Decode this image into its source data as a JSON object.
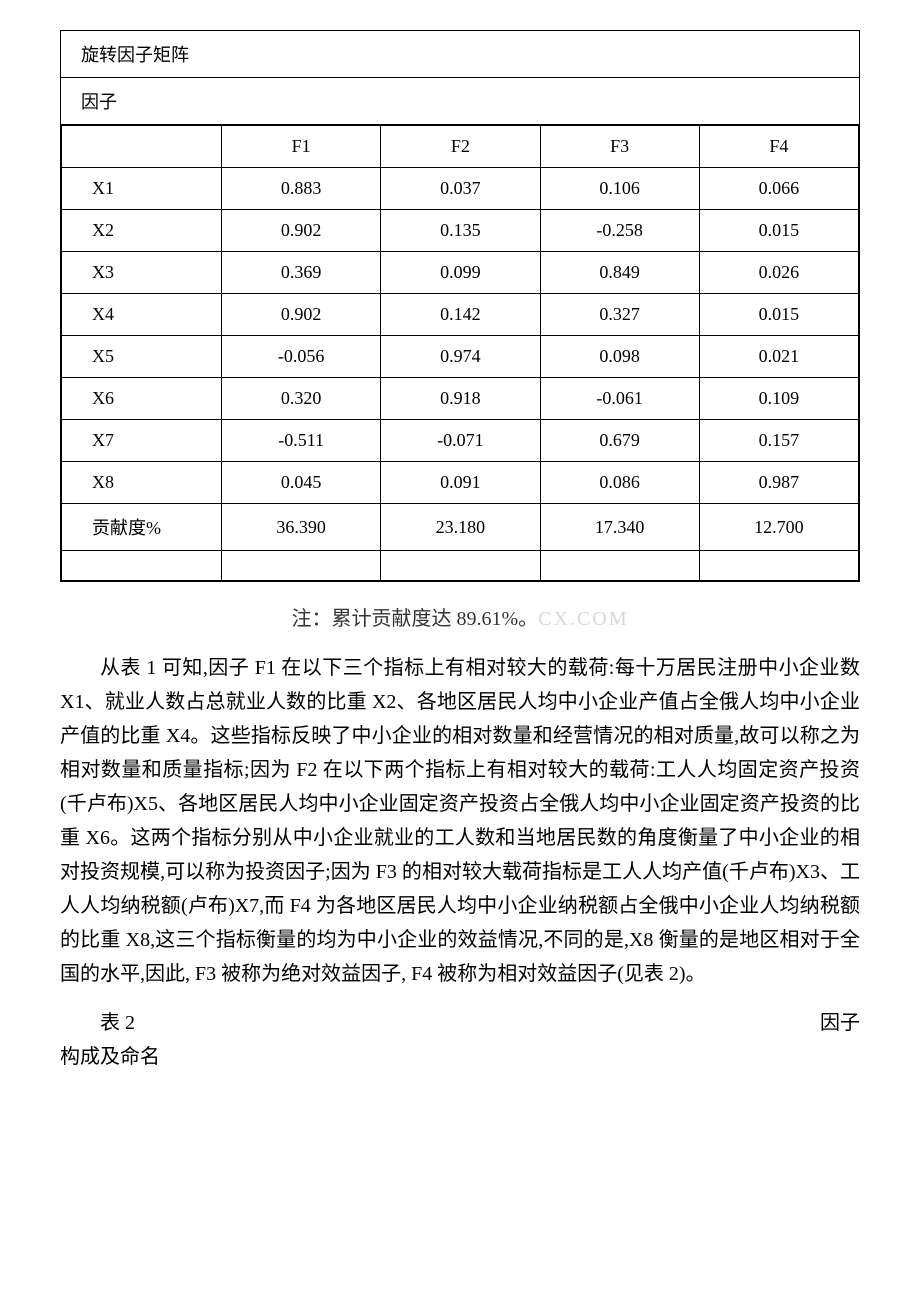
{
  "table1": {
    "title": "旋转因子矩阵",
    "subtitle": "因子",
    "columns": [
      "",
      "F1",
      "F2",
      "F3",
      "F4"
    ],
    "rows": [
      {
        "label": "X1",
        "values": [
          "0.883",
          "0.037",
          "0.106",
          "0.066"
        ]
      },
      {
        "label": "X2",
        "values": [
          "0.902",
          "0.135",
          "-0.258",
          "0.015"
        ]
      },
      {
        "label": "X3",
        "values": [
          "0.369",
          "0.099",
          "0.849",
          "0.026"
        ]
      },
      {
        "label": "X4",
        "values": [
          "0.902",
          "0.142",
          "0.327",
          "0.015"
        ]
      },
      {
        "label": "X5",
        "values": [
          "-0.056",
          "0.974",
          "0.098",
          "0.021"
        ]
      },
      {
        "label": "X6",
        "values": [
          "0.320",
          "0.918",
          "-0.061",
          "0.109"
        ]
      },
      {
        "label": "X7",
        "values": [
          "-0.511",
          "-0.071",
          "0.679",
          "0.157"
        ]
      },
      {
        "label": "X8",
        "values": [
          "0.045",
          "0.091",
          "0.086",
          "0.987"
        ]
      }
    ],
    "contribution": {
      "label": "贡献度%",
      "values": [
        "36.390",
        "23.180",
        "17.340",
        "12.700"
      ]
    },
    "border_color": "#000000",
    "background_color": "#ffffff",
    "font_size": 18
  },
  "note": {
    "prefix": "注：累计贡献度达 89.61%。",
    "watermark": "CX.COM",
    "font_size": 20
  },
  "paragraph": {
    "text": "从表 1 可知,因子 F1 在以下三个指标上有相对较大的载荷:每十万居民注册中小企业数 X1、就业人数占总就业人数的比重 X2、各地区居民人均中小企业产值占全俄人均中小企业产值的比重 X4。这些指标反映了中小企业的相对数量和经营情况的相对质量,故可以称之为相对数量和质量指标;因为 F2 在以下两个指标上有相对较大的载荷:工人人均固定资产投资(千卢布)X5、各地区居民人均中小企业固定资产投资占全俄人均中小企业固定资产投资的比重 X6。这两个指标分别从中小企业就业的工人数和当地居民数的角度衡量了中小企业的相对投资规模,可以称为投资因子;因为 F3 的相对较大载荷指标是工人人均产值(千卢布)X3、工人人均纳税额(卢布)X7,而 F4 为各地区居民人均中小企业纳税额占全俄中小企业人均纳税额的比重 X8,这三个指标衡量的均为中小企业的效益情况,不同的是,X8 衡量的是地区相对于全国的水平,因此, F3 被称为绝对效益因子, F4 被称为相对效益因子(见表 2)。",
    "font_size": 20,
    "line_height": 1.7
  },
  "table2_caption": {
    "left": "表 2",
    "right": "因子",
    "bottom": "构成及命名"
  }
}
